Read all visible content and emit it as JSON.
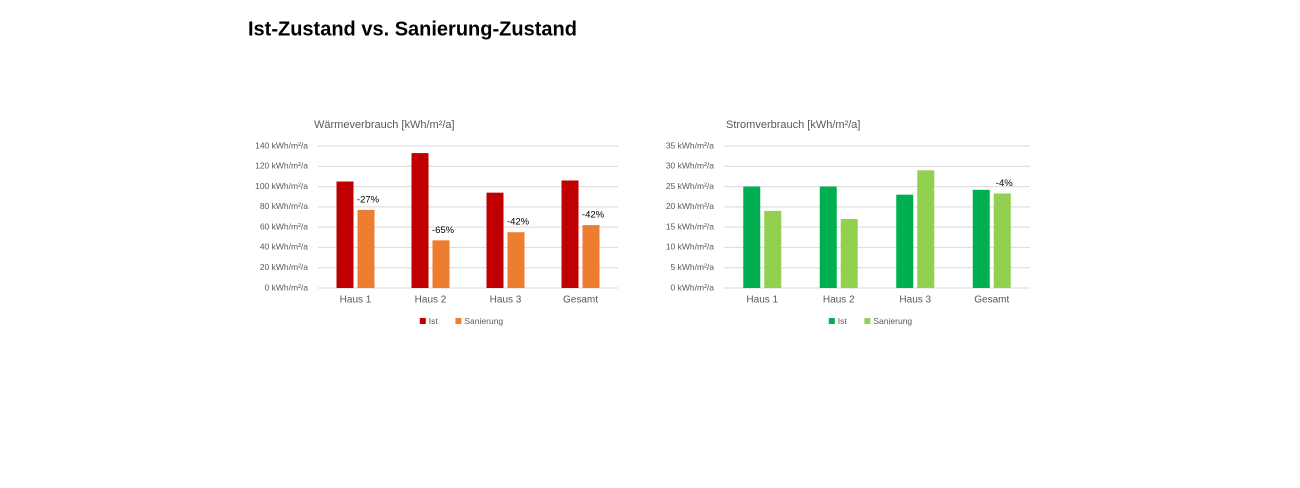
{
  "title": "Ist-Zustand vs. Sanierung-Zustand",
  "chart_data": [
    {
      "type": "bar",
      "title": "Wärmeverbrauch [kWh/m²/a]",
      "categories": [
        "Haus 1",
        "Haus 2",
        "Haus 3",
        "Gesamt"
      ],
      "series": [
        {
          "name": "Ist",
          "color": "#c00000",
          "values": [
            105,
            133,
            94,
            106
          ]
        },
        {
          "name": "Sanierung",
          "color": "#ed7d31",
          "values": [
            77,
            47,
            55,
            62
          ],
          "annotations": [
            "-27%",
            "-65%",
            "-42%",
            "-42%"
          ]
        }
      ],
      "ylim": [
        0,
        140
      ],
      "yticks": [
        {
          "value": 0,
          "label": "0 kWh/m²/a"
        },
        {
          "value": 20,
          "label": "20 kWh/m²/a"
        },
        {
          "value": 40,
          "label": "40 kWh/m²/a"
        },
        {
          "value": 60,
          "label": "60 kWh/m²/a"
        },
        {
          "value": 80,
          "label": "80 kWh/m²/a"
        },
        {
          "value": 100,
          "label": "100 kWh/m²/a"
        },
        {
          "value": 120,
          "label": "120 kWh/m²/a"
        },
        {
          "value": 140,
          "label": "140 kWh/m²/a"
        }
      ],
      "grid": true,
      "legend": "bottom"
    },
    {
      "type": "bar",
      "title": "Stromverbrauch [kWh/m²/a]",
      "categories": [
        "Haus 1",
        "Haus 2",
        "Haus 3",
        "Gesamt"
      ],
      "series": [
        {
          "name": "Ist",
          "color": "#00b050",
          "values": [
            25,
            25,
            23,
            24.2
          ]
        },
        {
          "name": "Sanierung",
          "color": "#92d050",
          "values": [
            19,
            17,
            29,
            23.3
          ],
          "annotations": [
            null,
            null,
            null,
            "-4%"
          ]
        }
      ],
      "ylim": [
        0,
        35
      ],
      "yticks": [
        {
          "value": 0,
          "label": "0 kWh/m²/a"
        },
        {
          "value": 5,
          "label": "5 kWh/m²/a"
        },
        {
          "value": 10,
          "label": "10 kWh/m²/a"
        },
        {
          "value": 15,
          "label": "15 kWh/m²/a"
        },
        {
          "value": 20,
          "label": "20 kWh/m²/a"
        },
        {
          "value": 25,
          "label": "25 kWh/m²/a"
        },
        {
          "value": 30,
          "label": "30 kWh/m²/a"
        },
        {
          "value": 35,
          "label": "35 kWh/m²/a"
        }
      ],
      "grid": true,
      "legend": "bottom"
    }
  ]
}
